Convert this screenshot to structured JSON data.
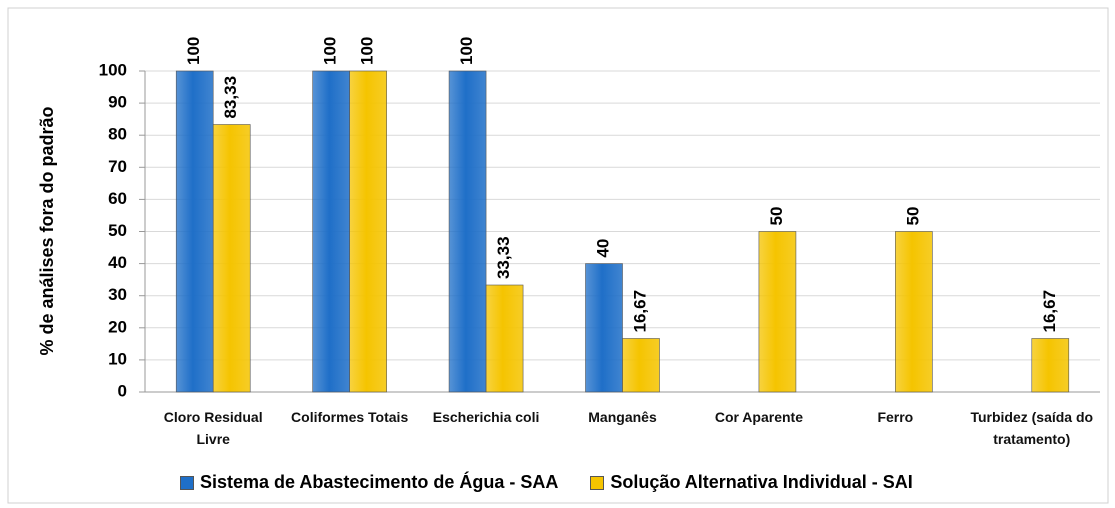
{
  "chart_data": {
    "type": "bar",
    "y_label": "% de análises fora do padrão",
    "categories": [
      "Cloro Residual Livre",
      "Coliformes Totais",
      "Escherichia coli",
      "Manganês",
      "Cor Aparente",
      "Ferro",
      "Turbidez (saída do tratamento)"
    ],
    "series": [
      {
        "name": "Sistema de Abastecimento de Água - SAA",
        "color": "#1f6fc8",
        "values": [
          100,
          100,
          100,
          40,
          null,
          null,
          null
        ]
      },
      {
        "name": "Solução Alternativa Individual - SAI",
        "color": "#f5c400",
        "values": [
          83.33,
          100,
          33.33,
          16.67,
          50,
          50,
          16.67
        ],
        "value_labels": [
          "83,33",
          "100",
          "33,33",
          "16,67",
          "50",
          "50",
          "16,67"
        ]
      }
    ],
    "ylim": [
      0,
      100
    ],
    "yticks": [
      0,
      10,
      20,
      30,
      40,
      50,
      60,
      70,
      80,
      90,
      100
    ],
    "grid": true,
    "legend": "bottom"
  }
}
